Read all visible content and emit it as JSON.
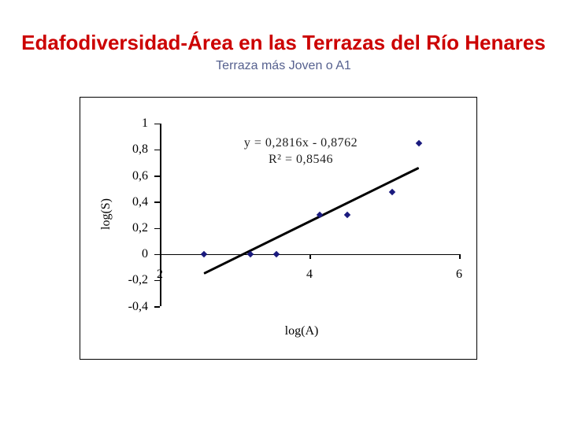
{
  "page": {
    "title": "Edafodiversidad-Área en las Terrazas del Río Henares",
    "subtitle": "Terraza más Joven o A1",
    "title_color": "#cc0000",
    "subtitle_color": "#56618f",
    "background_color": "#ffffff"
  },
  "chart_data": {
    "type": "scatter",
    "title": "",
    "xlabel": "log(A)",
    "ylabel": "log(S)",
    "xlim": [
      2,
      6
    ],
    "ylim": [
      -0.4,
      1
    ],
    "grid": false,
    "legend": false,
    "frame_border_color": "#000000",
    "x_ticks": {
      "values": [
        2,
        4,
        6
      ],
      "labels": [
        "2",
        "4",
        "6"
      ]
    },
    "y_ticks": {
      "values": [
        1,
        0.8,
        0.6,
        0.4,
        0.2,
        0,
        -0.2,
        -0.4
      ],
      "labels": [
        "1",
        "0,8",
        "0,6",
        "0,4",
        "0,2",
        "0",
        "-0,2",
        "-0,4"
      ]
    },
    "series": [
      {
        "marker": "diamond",
        "color": "#1a1a7e",
        "points": [
          [
            2.59,
            0
          ],
          [
            3.21,
            0
          ],
          [
            3.56,
            0
          ],
          [
            4.14,
            0.301
          ],
          [
            4.5,
            0.301
          ],
          [
            5.11,
            0.477
          ],
          [
            5.46,
            0.845
          ]
        ]
      }
    ],
    "trendline": {
      "slope": 0.2816,
      "intercept": -0.8762,
      "x_start": 2.59,
      "x_end": 5.46,
      "color": "#000000",
      "equation": "y = 0,2816x - 0,8762",
      "r_squared": "R² = 0,8546"
    }
  }
}
